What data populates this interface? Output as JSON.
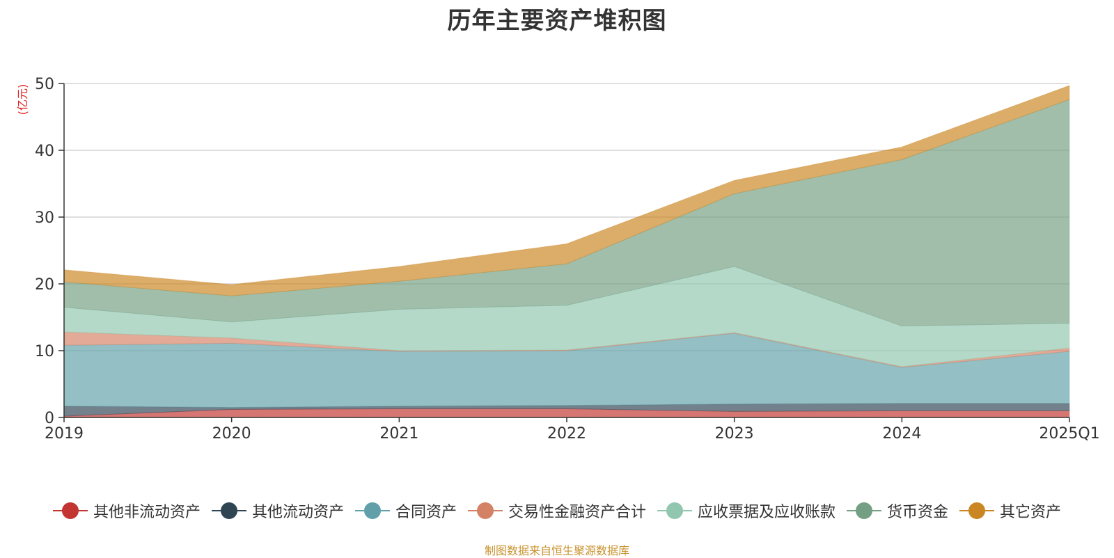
{
  "chart_data": {
    "type": "area",
    "title": "历年主要资产堆积图",
    "ylabel": "(亿元)",
    "ylim": [
      0,
      50
    ],
    "yticks": [
      "0",
      "10",
      "20",
      "30",
      "40",
      "50"
    ],
    "categories": [
      "2019",
      "2020",
      "2021",
      "2022",
      "2023",
      "2024",
      "2025Q1"
    ],
    "stacked": true,
    "grid": true,
    "legend_position": "bottom",
    "series": [
      {
        "name": "其他非流动资产",
        "color": "#c23531",
        "values": [
          0.2,
          1.2,
          1.3,
          1.3,
          0.9,
          1.0,
          1.0
        ]
      },
      {
        "name": "其他流动资产",
        "color": "#2f4554",
        "values": [
          1.5,
          0.3,
          0.4,
          0.5,
          1.1,
          1.1,
          1.1
        ]
      },
      {
        "name": "合同资产",
        "color": "#61a0a8",
        "values": [
          9.1,
          9.6,
          8.2,
          8.2,
          10.6,
          5.4,
          7.8
        ]
      },
      {
        "name": "交易性金融资产合计",
        "color": "#d48265",
        "values": [
          2.0,
          0.8,
          0.1,
          0.1,
          0.1,
          0.1,
          0.5
        ]
      },
      {
        "name": "应收票据及应收账款",
        "color": "#91c7ae",
        "values": [
          3.7,
          2.4,
          6.2,
          6.7,
          9.9,
          6.1,
          3.7
        ]
      },
      {
        "name": "货币资金",
        "color": "#749f83",
        "values": [
          3.8,
          3.9,
          4.2,
          6.2,
          10.9,
          24.9,
          33.5
        ]
      },
      {
        "name": "其它资产",
        "color": "#ca8622",
        "values": [
          1.8,
          1.7,
          2.2,
          3.0,
          2.0,
          1.9,
          2.1
        ]
      }
    ]
  },
  "source_note": "制图数据来自恒生聚源数据库"
}
